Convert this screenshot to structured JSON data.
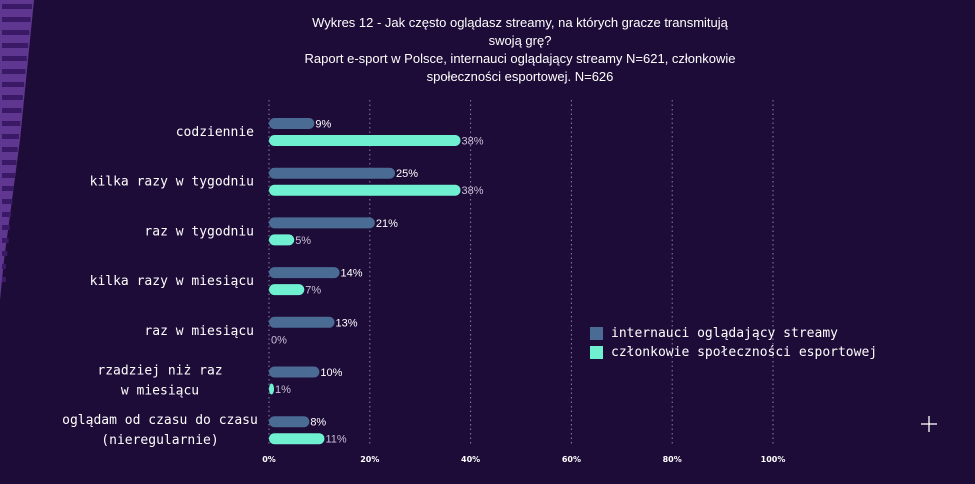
{
  "colors": {
    "background": "#1e0c38",
    "series1": "#4a6b93",
    "series2": "#6ff0d0",
    "grid": "#8a7fa0",
    "accent_purple": "#6b3fa0"
  },
  "chart_data": {
    "type": "bar",
    "orientation": "horizontal",
    "title_lines": [
      "Wykres 12 - Jak często oglądasz streamy, na których gracze transmitują",
      "swoją grę?",
      "Raport e-sport w Polsce, internauci oglądający streamy N=621, członkowie",
      "społeczności esportowej. N=626"
    ],
    "categories": [
      [
        "codziennie"
      ],
      [
        "kilka razy w tygodniu"
      ],
      [
        "raz w tygodniu"
      ],
      [
        "kilka razy w miesiącu"
      ],
      [
        "raz w miesiącu"
      ],
      [
        "rzadziej niż raz",
        "w miesiącu"
      ],
      [
        "oglądam od czasu do czasu",
        "(nieregularnie)"
      ]
    ],
    "series": [
      {
        "name": "internauci oglądający streamy",
        "values": [
          9,
          25,
          21,
          14,
          13,
          10,
          8
        ],
        "labels": [
          "9%",
          "25%",
          "21%",
          "14%",
          "13%",
          "10%",
          "8%"
        ]
      },
      {
        "name": "członkowie społeczności esportowej",
        "values": [
          38,
          38,
          5,
          7,
          0,
          1,
          11
        ],
        "labels": [
          "38%",
          "38%",
          "5%",
          "7%",
          "0%",
          "1%",
          "11%"
        ]
      }
    ],
    "xlim": [
      0,
      100
    ],
    "xticks": [
      0,
      20,
      40,
      60,
      80,
      100
    ],
    "xtick_labels": [
      "0%",
      "20%",
      "40%",
      "60%",
      "80%",
      "100%"
    ],
    "grid": "vertical dotted",
    "legend_position": "right"
  }
}
